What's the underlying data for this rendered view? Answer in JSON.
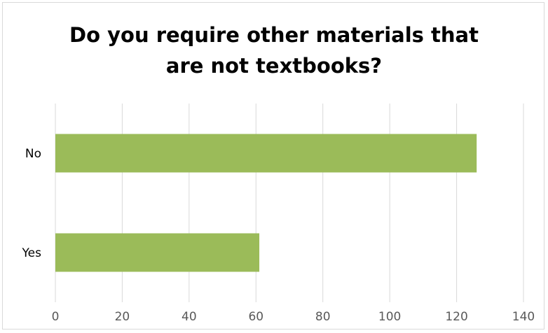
{
  "chart_data": {
    "type": "bar",
    "orientation": "horizontal",
    "title_lines": [
      "Do you require other materials that",
      "are not textbooks?"
    ],
    "categories": [
      "No",
      "Yes"
    ],
    "values": [
      126,
      61
    ],
    "xlim": [
      0,
      140
    ],
    "xticks": [
      0,
      20,
      40,
      60,
      80,
      100,
      120,
      140
    ],
    "xtick_labels": [
      "0",
      "20",
      "40",
      "60",
      "80",
      "100",
      "120",
      "140"
    ],
    "grid": true,
    "legend": "none",
    "bar_color": "#9bbb59",
    "grid_color": "#d9d9d9"
  }
}
